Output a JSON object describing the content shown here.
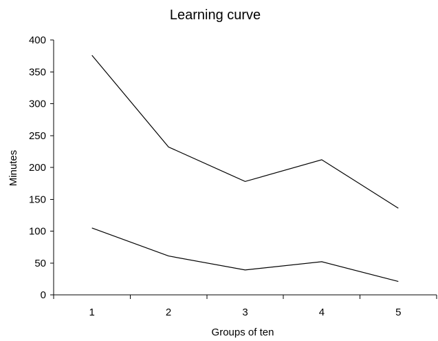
{
  "chart_data": {
    "type": "line",
    "title": "Learning curve",
    "xlabel": "Groups of ten",
    "ylabel": "Minutes",
    "categories": [
      "1",
      "2",
      "3",
      "4",
      "5"
    ],
    "ylim": [
      0,
      400
    ],
    "yticks": [
      0,
      50,
      100,
      150,
      200,
      250,
      300,
      350,
      400
    ],
    "grid": false,
    "legend": "none",
    "line_color": "#000000",
    "series": [
      {
        "values": [
          376,
          232,
          178,
          212,
          136
        ]
      },
      {
        "values": [
          105,
          61,
          39,
          52,
          21
        ]
      }
    ]
  }
}
